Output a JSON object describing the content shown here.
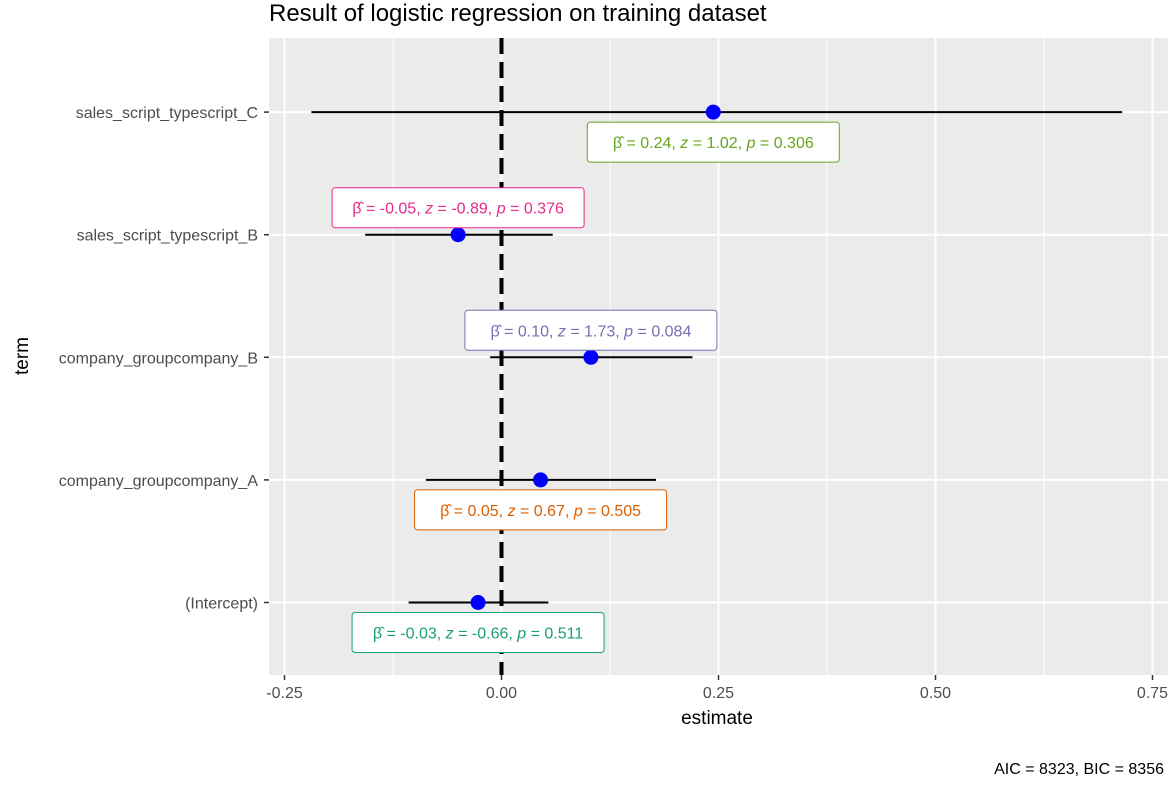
{
  "chart_data": {
    "type": "scatter",
    "title": "Result of logistic regression on training dataset",
    "xlabel": "estimate",
    "ylabel": "term",
    "caption": "AIC = 8323, BIC = 8356",
    "xlim": [
      -0.27,
      0.77
    ],
    "x_ticks": [
      -0.25,
      0.0,
      0.25,
      0.5,
      0.75
    ],
    "x_tick_labels": [
      "-0.25",
      "0.00",
      "0.25",
      "0.50",
      "0.75"
    ],
    "reference_line_x": 0,
    "grid": true,
    "terms": [
      {
        "term": "(Intercept)",
        "estimate": -0.027,
        "ci_low": -0.107,
        "ci_high": 0.054,
        "label_parts": {
          "beta": "-0.03",
          "z": "-0.66",
          "p": "0.511"
        },
        "color": "#1b9e77",
        "label_pos": "below"
      },
      {
        "term": "company_groupcompany_A",
        "estimate": 0.045,
        "ci_low": -0.087,
        "ci_high": 0.178,
        "label_parts": {
          "beta": "0.05",
          "z": "0.67",
          "p": "0.505"
        },
        "color": "#d95f02",
        "label_pos": "below"
      },
      {
        "term": "company_groupcompany_B",
        "estimate": 0.103,
        "ci_low": -0.013,
        "ci_high": 0.22,
        "label_parts": {
          "beta": "0.10",
          "z": "1.73",
          "p": "0.084"
        },
        "color": "#7570b3",
        "label_pos": "above"
      },
      {
        "term": "sales_script_typescript_B",
        "estimate": -0.05,
        "ci_low": -0.157,
        "ci_high": 0.059,
        "label_parts": {
          "beta": "-0.05",
          "z": "-0.89",
          "p": "0.376"
        },
        "color": "#e7298a",
        "label_pos": "above"
      },
      {
        "term": "sales_script_typescript_C",
        "estimate": 0.244,
        "ci_low": -0.219,
        "ci_high": 0.715,
        "label_parts": {
          "beta": "0.24",
          "z": "1.02",
          "p": "0.306"
        },
        "color": "#66a61e",
        "label_pos": "below"
      }
    ],
    "point_color": "#0000ff"
  }
}
